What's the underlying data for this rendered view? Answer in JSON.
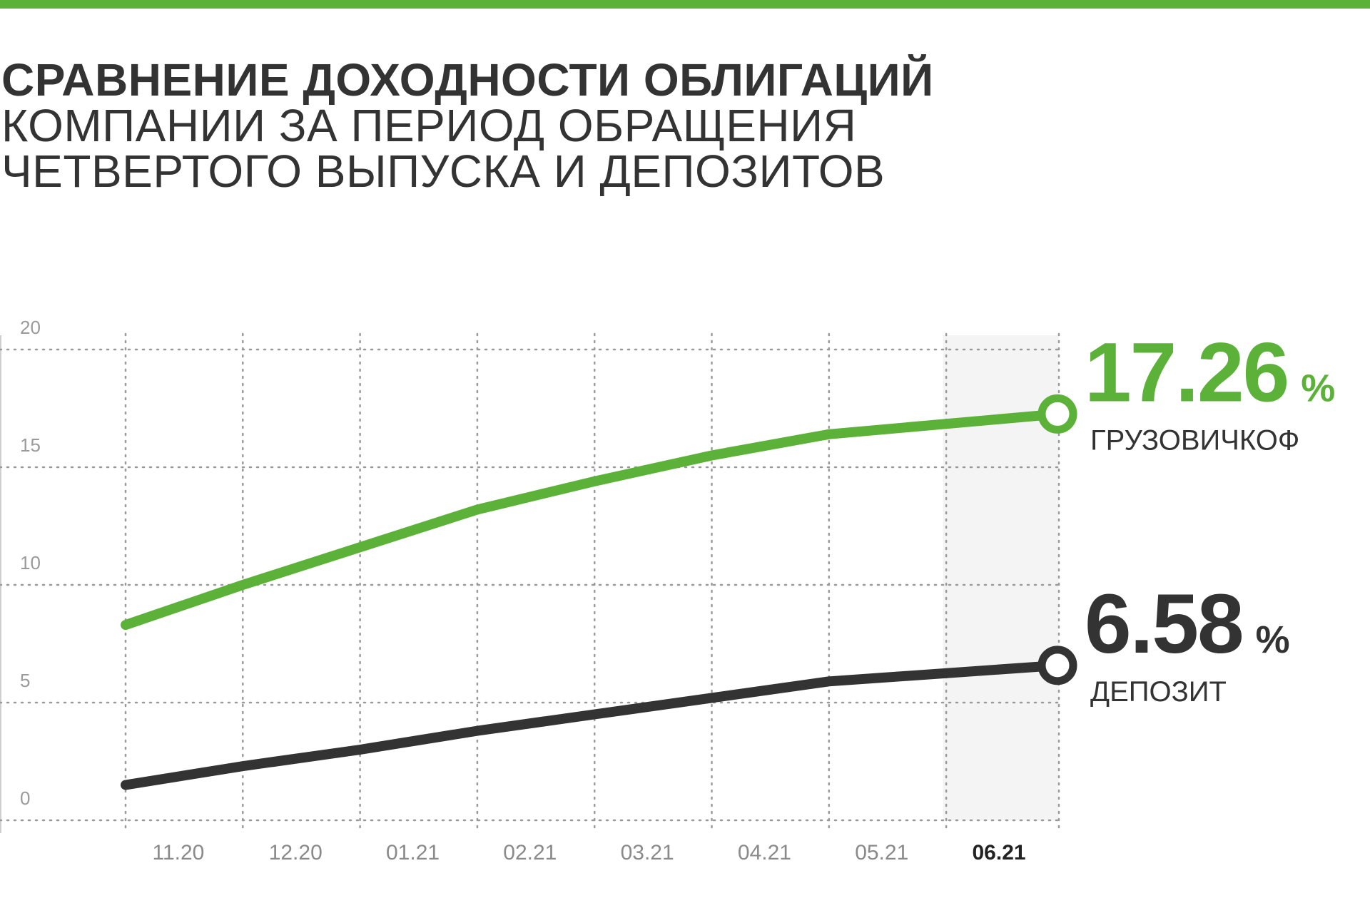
{
  "title": {
    "line1": "СРАВНЕНИЕ ДОХОДНОСТИ ОБЛИГАЦИЙ",
    "line2": "КОМПАНИИ ЗА ПЕРИОД ОБРАЩЕНИЯ",
    "line3": "ЧЕТВЕРТОГО ВЫПУСКА И ДЕПОЗИТОВ"
  },
  "colors": {
    "accent": "#5cb138",
    "dark": "#333333",
    "grid": "#9a9a9a",
    "highlight_band": "#f4f4f4"
  },
  "chart_data": {
    "type": "line",
    "categories": [
      "11.20",
      "12.20",
      "01.21",
      "02.21",
      "03.21",
      "04.21",
      "05.21",
      "06.21"
    ],
    "highlight_category": "06.21",
    "y_ticks": [
      0,
      5,
      10,
      15,
      20
    ],
    "ylim": [
      0,
      20
    ],
    "grid": true,
    "series": [
      {
        "name": "ГРУЗОВИЧКОФ",
        "color": "#5cb138",
        "x": [
          "11.20",
          "12.20",
          "01.21",
          "02.21",
          "03.21",
          "04.21",
          "05.21",
          "06.21"
        ],
        "values": [
          8.3,
          10.0,
          11.6,
          13.2,
          14.4,
          15.5,
          16.4,
          17.26
        ],
        "end_value_label": "17.26",
        "unit": "%"
      },
      {
        "name": "ДЕПОЗИТ",
        "color": "#333333",
        "x": [
          "11.20",
          "12.20",
          "01.21",
          "02.21",
          "03.21",
          "04.21",
          "05.21",
          "06.21"
        ],
        "values": [
          1.5,
          2.3,
          3.0,
          3.8,
          4.5,
          5.2,
          5.9,
          6.58
        ],
        "end_value_label": "6.58",
        "unit": "%"
      }
    ]
  }
}
